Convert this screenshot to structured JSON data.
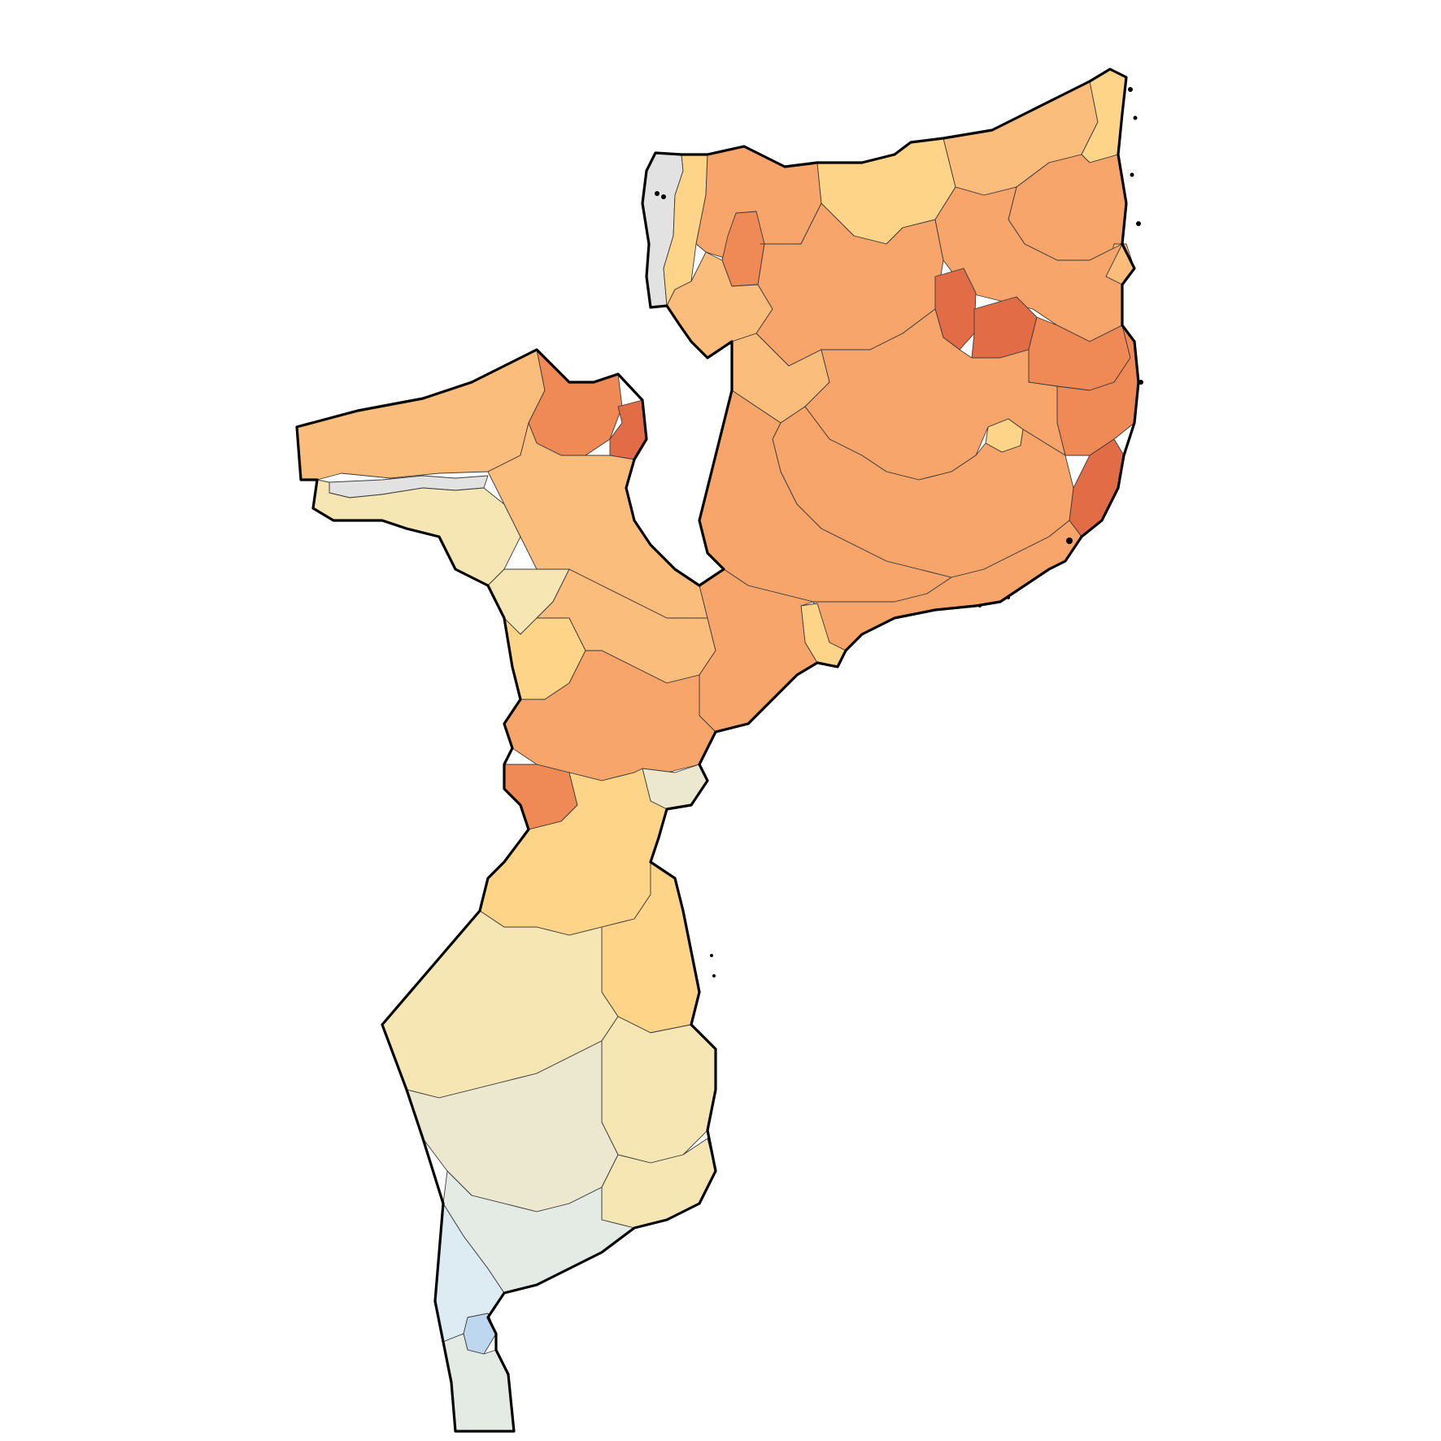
{
  "map": {
    "country": "Mozambique",
    "style": "choropleth of districts, no title, no legend, no labels",
    "colors": {
      "background": "#ffffff",
      "outline": "#000000",
      "district_border": "#3a3a3a",
      "no_data": "#e2e2e2",
      "very_high": "#e26c46",
      "high": "#ef8a56",
      "mid_high": "#f7a56b",
      "medium": "#fbbd7c",
      "mid_low": "#fed489",
      "low": "#f6e6b4",
      "neutral": "#ece8cf",
      "cool_low": "#e3ebe4",
      "cool": "#dcecf2",
      "cool_high": "#bcd7ee"
    },
    "regions": [
      {
        "name": "lake-niassa-shore",
        "level": "no_data"
      },
      {
        "name": "niassa-west-strip",
        "level": "mid_low"
      },
      {
        "name": "niassa-northwest",
        "level": "mid_high"
      },
      {
        "name": "niassa-west-central",
        "level": "medium"
      },
      {
        "name": "lichinga-highlands",
        "level": "high"
      },
      {
        "name": "niassa-north-central",
        "level": "mid_low"
      },
      {
        "name": "niassa-central",
        "level": "mid_high"
      },
      {
        "name": "niassa-south",
        "level": "medium"
      },
      {
        "name": "cabo-delgado-north",
        "level": "medium"
      },
      {
        "name": "cabo-delgado-northeast",
        "level": "mid_high"
      },
      {
        "name": "cabo-delgado-coast-north",
        "level": "mid_low"
      },
      {
        "name": "cabo-delgado-south",
        "level": "mid_high"
      },
      {
        "name": "cabo-delgado-coast-south",
        "level": "medium"
      },
      {
        "name": "nampula-interior-a",
        "level": "very_high"
      },
      {
        "name": "nampula-interior-b",
        "level": "very_high"
      },
      {
        "name": "nampula-north",
        "level": "high"
      },
      {
        "name": "nampula-coast",
        "level": "high"
      },
      {
        "name": "nampula-city",
        "level": "mid_low"
      },
      {
        "name": "nampula-south-coast",
        "level": "very_high"
      },
      {
        "name": "nampula-west",
        "level": "mid_high"
      },
      {
        "name": "zambezia-north",
        "level": "mid_high"
      },
      {
        "name": "zambezia-central",
        "level": "mid_high"
      },
      {
        "name": "zambezia-coast",
        "level": "mid_high"
      },
      {
        "name": "zambezia-quelimane",
        "level": "mid_low"
      },
      {
        "name": "tete-north",
        "level": "medium"
      },
      {
        "name": "tete-northeast",
        "level": "high"
      },
      {
        "name": "tete-angonia",
        "level": "very_high"
      },
      {
        "name": "tete-southwest",
        "level": "low"
      },
      {
        "name": "tete-cahora-bassa",
        "level": "no_data"
      },
      {
        "name": "tete-central",
        "level": "medium"
      },
      {
        "name": "manica-north",
        "level": "low"
      },
      {
        "name": "manica-central",
        "level": "mid_low"
      },
      {
        "name": "manica-south",
        "level": "mid_high"
      },
      {
        "name": "manica-southwest",
        "level": "high"
      },
      {
        "name": "sofala-north",
        "level": "medium"
      },
      {
        "name": "sofala-central",
        "level": "mid_high"
      },
      {
        "name": "sofala-beira",
        "level": "neutral"
      },
      {
        "name": "sofala-south",
        "level": "mid_low"
      },
      {
        "name": "inhambane-north",
        "level": "mid_low"
      },
      {
        "name": "inhambane-central",
        "level": "low"
      },
      {
        "name": "inhambane-south",
        "level": "low"
      },
      {
        "name": "gaza-north",
        "level": "low"
      },
      {
        "name": "gaza-central",
        "level": "neutral"
      },
      {
        "name": "gaza-south",
        "level": "cool_low"
      },
      {
        "name": "maputo-province",
        "level": "cool"
      },
      {
        "name": "maputo-city",
        "level": "cool_high"
      },
      {
        "name": "maputo-south",
        "level": "cool_low"
      }
    ]
  }
}
